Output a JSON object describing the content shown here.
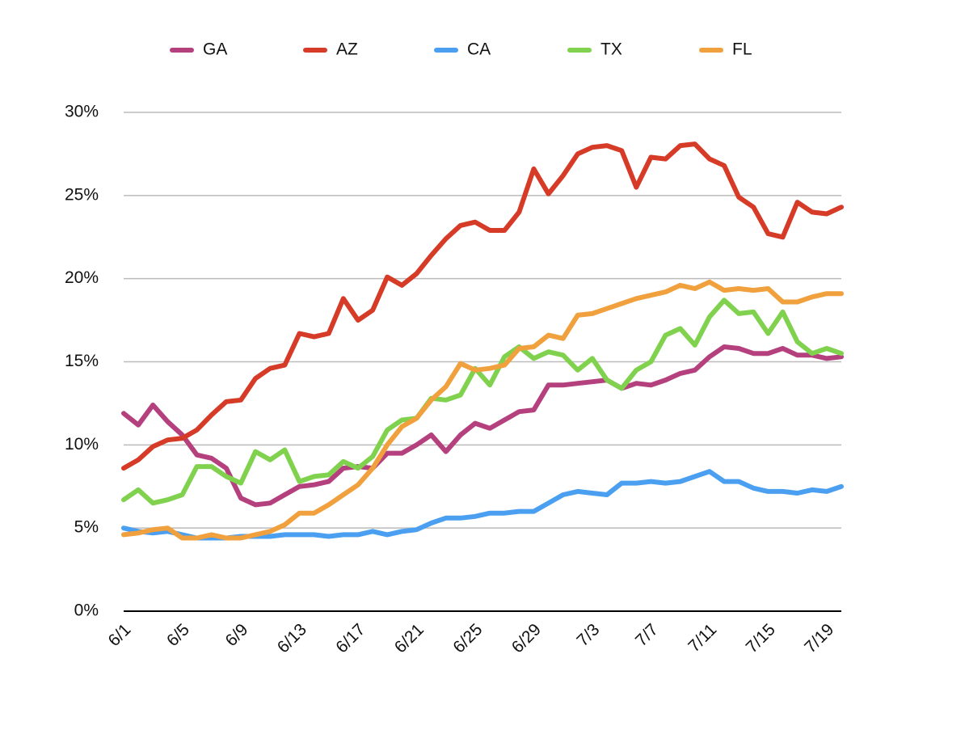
{
  "chart_data": {
    "type": "line",
    "categories": [
      "6/1",
      null,
      null,
      null,
      "6/5",
      null,
      null,
      null,
      "6/9",
      null,
      null,
      null,
      "6/13",
      null,
      null,
      null,
      "6/17",
      null,
      null,
      null,
      "6/21",
      null,
      null,
      null,
      "6/25",
      null,
      null,
      null,
      "6/29",
      null,
      null,
      null,
      "7/3",
      null,
      null,
      null,
      "7/7",
      null,
      null,
      null,
      "7/11",
      null,
      null,
      null,
      "7/15",
      null,
      null,
      null,
      "7/19",
      null
    ],
    "series": [
      {
        "name": "GA",
        "color": "#b5407e",
        "values": [
          11.9,
          11.2,
          12.4,
          11.4,
          10.6,
          9.4,
          9.2,
          8.6,
          6.8,
          6.4,
          6.5,
          7.0,
          7.5,
          7.6,
          7.8,
          8.6,
          8.7,
          8.6,
          9.5,
          9.5,
          10.0,
          10.6,
          9.6,
          10.6,
          11.3,
          11.0,
          11.5,
          12.0,
          12.1,
          13.6,
          13.6,
          13.7,
          13.8,
          13.9,
          13.4,
          13.7,
          13.6,
          13.9,
          14.3,
          14.5,
          15.3,
          15.9,
          15.8,
          15.5,
          15.5,
          15.8,
          15.4,
          15.4,
          15.2,
          15.3
        ]
      },
      {
        "name": "AZ",
        "color": "#d63b28",
        "values": [
          8.6,
          9.1,
          9.9,
          10.3,
          10.4,
          10.9,
          11.8,
          12.6,
          12.7,
          14.0,
          14.6,
          14.8,
          16.7,
          16.5,
          16.7,
          18.8,
          17.5,
          18.1,
          20.1,
          19.6,
          20.3,
          21.4,
          22.4,
          23.2,
          23.4,
          22.9,
          22.9,
          24.0,
          26.6,
          25.1,
          26.2,
          27.5,
          27.9,
          28.0,
          27.7,
          25.5,
          27.3,
          27.2,
          28.0,
          28.1,
          27.2,
          26.8,
          24.9,
          24.3,
          22.7,
          22.5,
          24.6,
          24.0,
          23.9,
          24.3
        ]
      },
      {
        "name": "CA",
        "color": "#4a9ff0",
        "values": [
          5.0,
          4.8,
          4.7,
          4.8,
          4.6,
          4.4,
          4.4,
          4.4,
          4.5,
          4.5,
          4.5,
          4.6,
          4.6,
          4.6,
          4.5,
          4.6,
          4.6,
          4.8,
          4.6,
          4.8,
          4.9,
          5.3,
          5.6,
          5.6,
          5.7,
          5.9,
          5.9,
          6.0,
          6.0,
          6.5,
          7.0,
          7.2,
          7.1,
          7.0,
          7.7,
          7.7,
          7.8,
          7.7,
          7.8,
          8.1,
          8.4,
          7.8,
          7.8,
          7.4,
          7.2,
          7.2,
          7.1,
          7.3,
          7.2,
          7.5
        ]
      },
      {
        "name": "TX",
        "color": "#80d24e",
        "values": [
          6.7,
          7.3,
          6.5,
          6.7,
          7.0,
          8.7,
          8.7,
          8.1,
          7.7,
          9.6,
          9.1,
          9.7,
          7.8,
          8.1,
          8.2,
          9.0,
          8.6,
          9.3,
          10.9,
          11.5,
          11.6,
          12.8,
          12.7,
          13.0,
          14.6,
          13.6,
          15.3,
          15.9,
          15.2,
          15.6,
          15.4,
          14.5,
          15.2,
          13.9,
          13.4,
          14.5,
          15.0,
          16.6,
          17.0,
          16.0,
          17.7,
          18.7,
          17.9,
          18.0,
          16.7,
          18.0,
          16.2,
          15.5,
          15.8,
          15.5
        ]
      },
      {
        "name": "FL",
        "color": "#f0a03c",
        "values": [
          4.6,
          4.7,
          4.9,
          5.0,
          4.4,
          4.4,
          4.6,
          4.4,
          4.4,
          4.6,
          4.8,
          5.2,
          5.9,
          5.9,
          6.4,
          7.0,
          7.6,
          8.6,
          10.0,
          11.1,
          11.6,
          12.7,
          13.5,
          14.9,
          14.5,
          14.6,
          14.8,
          15.8,
          15.9,
          16.6,
          16.4,
          17.8,
          17.9,
          18.2,
          18.5,
          18.8,
          19.0,
          19.2,
          19.6,
          19.4,
          19.8,
          19.3,
          19.4,
          19.3,
          19.4,
          18.6,
          18.6,
          18.9,
          19.1,
          19.1
        ]
      }
    ],
    "ylim": [
      0,
      30
    ],
    "yticks": [
      {
        "value": 0,
        "label": "0%"
      },
      {
        "value": 5,
        "label": "5%"
      },
      {
        "value": 10,
        "label": "10%"
      },
      {
        "value": 15,
        "label": "15%"
      },
      {
        "value": 20,
        "label": "20%"
      },
      {
        "value": 25,
        "label": "25%"
      },
      {
        "value": 30,
        "label": "30%"
      }
    ],
    "grid": true,
    "legend": "top"
  }
}
